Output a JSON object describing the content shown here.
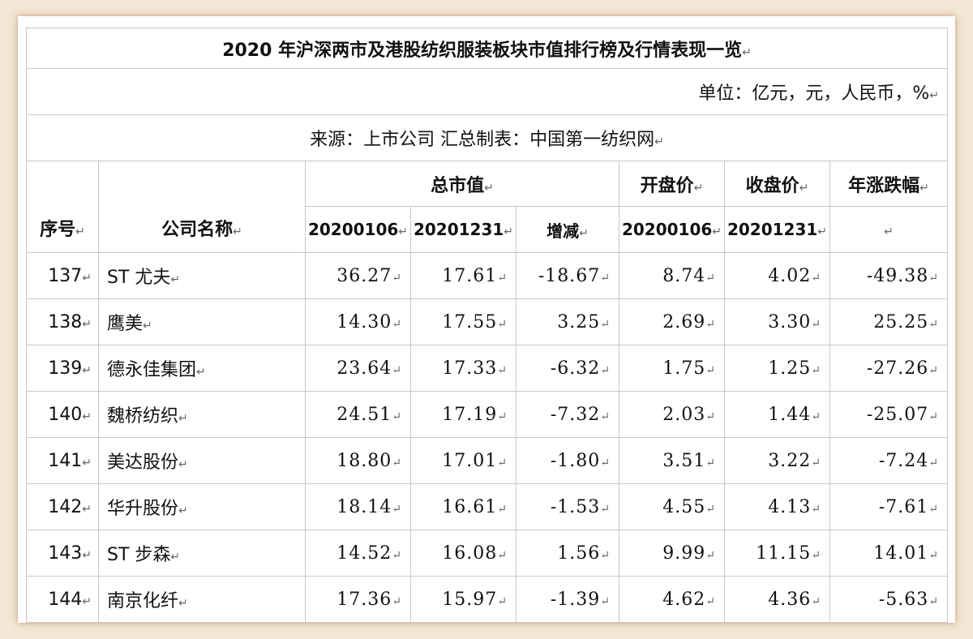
{
  "title": "2020 年沪深两市及港股纺织服装板块市值排行榜及行情表现一览",
  "unit": "单位：亿元，元，人民币，%",
  "source": "来源：上市公司  汇总制表：中国第一纺织网",
  "headers": {
    "index": "序号",
    "company": "公司名称",
    "market_cap": "总市值",
    "open_price": "开盘价",
    "close_price": "收盘价",
    "annual_change": "年涨跌幅",
    "sub": {
      "mc_start": "20200106",
      "mc_end": "20201231",
      "mc_change": "增减",
      "open_date": "20200106",
      "close_date": "20201231",
      "change_blank": ""
    }
  },
  "rows": [
    {
      "index": "137",
      "name": "ST 尤夫",
      "mc_start": "36.27",
      "mc_end": "17.61",
      "mc_change": "-18.67",
      "open": "8.74",
      "close": "4.02",
      "change": "-49.38"
    },
    {
      "index": "138",
      "name": "鹰美",
      "mc_start": "14.30",
      "mc_end": "17.55",
      "mc_change": "3.25",
      "open": "2.69",
      "close": "3.30",
      "change": "25.25"
    },
    {
      "index": "139",
      "name": "德永佳集团",
      "mc_start": "23.64",
      "mc_end": "17.33",
      "mc_change": "-6.32",
      "open": "1.75",
      "close": "1.25",
      "change": "-27.26"
    },
    {
      "index": "140",
      "name": "魏桥纺织",
      "mc_start": "24.51",
      "mc_end": "17.19",
      "mc_change": "-7.32",
      "open": "2.03",
      "close": "1.44",
      "change": "-25.07"
    },
    {
      "index": "141",
      "name": "美达股份",
      "mc_start": "18.80",
      "mc_end": "17.01",
      "mc_change": "-1.80",
      "open": "3.51",
      "close": "3.22",
      "change": "-7.24"
    },
    {
      "index": "142",
      "name": "华升股份",
      "mc_start": "18.14",
      "mc_end": "16.61",
      "mc_change": "-1.53",
      "open": "4.55",
      "close": "4.13",
      "change": "-7.61"
    },
    {
      "index": "143",
      "name": "ST 步森",
      "mc_start": "14.52",
      "mc_end": "16.08",
      "mc_change": "1.56",
      "open": "9.99",
      "close": "11.15",
      "change": "14.01"
    },
    {
      "index": "144",
      "name": "南京化纤",
      "mc_start": "17.36",
      "mc_end": "15.97",
      "mc_change": "-1.39",
      "open": "4.62",
      "close": "4.36",
      "change": "-5.63"
    }
  ]
}
